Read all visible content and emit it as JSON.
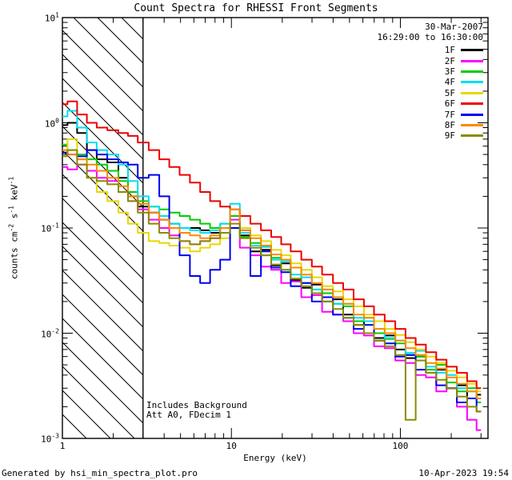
{
  "meta": {
    "date": "30-Mar-2007",
    "time_range": "16:29:00 to 16:30:00"
  },
  "annotations": {
    "line1": "Includes Background",
    "line2": "Att A0, FDecim 1"
  },
  "footer": {
    "left": "Generated by hsi_min_spectra_plot.pro",
    "right": "10-Apr-2023 19:54"
  },
  "chart_data": {
    "type": "line",
    "mode": "step-histogram",
    "title": "Count Spectra for RHESSI Front Segments",
    "xlabel": "Energy (keV)",
    "ylabel_segments": [
      {
        "t": "counts cm"
      },
      {
        "t": "-2",
        "sup": true
      },
      {
        "t": " s"
      },
      {
        "t": "-1",
        "sup": true
      },
      {
        "t": " keV"
      },
      {
        "t": "-1",
        "sup": true
      }
    ],
    "x_scale": "log",
    "y_scale": "log",
    "xlim": [
      1,
      330
    ],
    "ylim": [
      0.001,
      10
    ],
    "x_major_ticks": [
      1,
      10,
      100
    ],
    "y_major_exponents": [
      1,
      0,
      -1,
      -2,
      -3
    ],
    "grid": false,
    "legend_position": "top-right-inside",
    "shaded_region": {
      "from": 1,
      "to": 3,
      "style": "diagonal-hatch",
      "meaning": "excluded low-energy band"
    },
    "energies": [
      1.0,
      1.15,
      1.3,
      1.5,
      1.7,
      2.0,
      2.3,
      2.6,
      3.0,
      3.5,
      4.0,
      4.6,
      5.3,
      6.1,
      7.0,
      8.0,
      9.2,
      10.5,
      12,
      14,
      16,
      18.5,
      21,
      24,
      28,
      32,
      37,
      43,
      49,
      57,
      65,
      75,
      87,
      100,
      115,
      132,
      152,
      175,
      201,
      232,
      266,
      300
    ],
    "series": [
      {
        "name": "1F",
        "color": "#000000",
        "values": [
          0.95,
          1.0,
          0.8,
          0.55,
          0.45,
          0.42,
          0.3,
          0.2,
          0.16,
          0.14,
          0.12,
          0.11,
          0.1,
          0.1,
          0.095,
          0.09,
          0.1,
          0.13,
          0.085,
          0.06,
          0.062,
          0.044,
          0.046,
          0.032,
          0.027,
          0.029,
          0.02,
          0.021,
          0.015,
          0.012,
          0.013,
          0.009,
          0.0095,
          0.007,
          0.0058,
          0.006,
          0.0042,
          0.0045,
          0.003,
          0.0032,
          0.0024,
          0.0026
        ]
      },
      {
        "name": "2F",
        "color": "#ff00ff",
        "values": [
          0.38,
          0.36,
          0.4,
          0.35,
          0.3,
          0.28,
          0.22,
          0.18,
          0.15,
          0.12,
          0.1,
          0.085,
          0.075,
          0.07,
          0.075,
          0.08,
          0.09,
          0.12,
          0.065,
          0.055,
          0.043,
          0.04,
          0.03,
          0.031,
          0.022,
          0.023,
          0.016,
          0.015,
          0.013,
          0.01,
          0.0095,
          0.0075,
          0.0072,
          0.0055,
          0.0052,
          0.004,
          0.0038,
          0.0028,
          0.003,
          0.002,
          0.0015,
          0.0012
        ]
      },
      {
        "name": "3F",
        "color": "#00cc00",
        "values": [
          0.62,
          0.55,
          0.5,
          0.45,
          0.4,
          0.35,
          0.28,
          0.22,
          0.18,
          0.16,
          0.15,
          0.14,
          0.13,
          0.12,
          0.11,
          0.1,
          0.11,
          0.13,
          0.082,
          0.072,
          0.055,
          0.052,
          0.04,
          0.042,
          0.03,
          0.026,
          0.024,
          0.019,
          0.018,
          0.013,
          0.014,
          0.01,
          0.0088,
          0.008,
          0.0062,
          0.006,
          0.0045,
          0.005,
          0.0034,
          0.0028,
          0.003,
          0.0022
        ]
      },
      {
        "name": "4F",
        "color": "#00dff0",
        "values": [
          1.15,
          1.3,
          0.9,
          0.65,
          0.55,
          0.5,
          0.4,
          0.28,
          0.2,
          0.16,
          0.13,
          0.11,
          0.1,
          0.095,
          0.09,
          0.095,
          0.11,
          0.17,
          0.09,
          0.068,
          0.066,
          0.05,
          0.048,
          0.036,
          0.034,
          0.026,
          0.026,
          0.019,
          0.019,
          0.014,
          0.013,
          0.011,
          0.009,
          0.0085,
          0.0065,
          0.0068,
          0.0048,
          0.0042,
          0.004,
          0.003,
          0.0028,
          0.0024
        ]
      },
      {
        "name": "5F",
        "color": "#e8d800",
        "values": [
          0.55,
          0.7,
          0.45,
          0.3,
          0.22,
          0.18,
          0.14,
          0.11,
          0.09,
          0.075,
          0.072,
          0.068,
          0.065,
          0.06,
          0.065,
          0.07,
          0.08,
          0.1,
          0.1,
          0.085,
          0.075,
          0.062,
          0.055,
          0.046,
          0.04,
          0.034,
          0.028,
          0.025,
          0.021,
          0.018,
          0.015,
          0.013,
          0.011,
          0.0096,
          0.0082,
          0.007,
          0.006,
          0.0052,
          0.0044,
          0.0038,
          0.0033,
          0.0028
        ]
      },
      {
        "name": "6F",
        "color": "#ee0000",
        "values": [
          1.5,
          1.6,
          1.2,
          1.0,
          0.9,
          0.85,
          0.8,
          0.75,
          0.65,
          0.55,
          0.45,
          0.38,
          0.32,
          0.27,
          0.22,
          0.18,
          0.16,
          0.15,
          0.13,
          0.11,
          0.095,
          0.082,
          0.07,
          0.06,
          0.05,
          0.043,
          0.036,
          0.03,
          0.026,
          0.021,
          0.018,
          0.015,
          0.013,
          0.011,
          0.009,
          0.0078,
          0.0066,
          0.0056,
          0.0048,
          0.0042,
          0.0035,
          0.003
        ]
      },
      {
        "name": "7F",
        "color": "#0000ee",
        "values": [
          0.52,
          0.5,
          0.48,
          0.55,
          0.5,
          0.45,
          0.42,
          0.4,
          0.3,
          0.32,
          0.2,
          0.1,
          0.055,
          0.035,
          0.03,
          0.04,
          0.05,
          0.1,
          0.095,
          0.035,
          0.06,
          0.042,
          0.038,
          0.028,
          0.03,
          0.02,
          0.022,
          0.015,
          0.014,
          0.011,
          0.012,
          0.0085,
          0.008,
          0.006,
          0.0062,
          0.0045,
          0.0042,
          0.0032,
          0.003,
          0.0022,
          0.0024,
          0.0018
        ]
      },
      {
        "name": "8F",
        "color": "#ff8800",
        "values": [
          0.55,
          0.5,
          0.45,
          0.4,
          0.35,
          0.3,
          0.25,
          0.2,
          0.17,
          0.14,
          0.12,
          0.1,
          0.09,
          0.085,
          0.08,
          0.085,
          0.1,
          0.15,
          0.095,
          0.08,
          0.068,
          0.056,
          0.05,
          0.042,
          0.036,
          0.03,
          0.026,
          0.022,
          0.019,
          0.015,
          0.014,
          0.011,
          0.01,
          0.0085,
          0.0072,
          0.0062,
          0.0052,
          0.0046,
          0.0038,
          0.0033,
          0.0028,
          0.0024
        ]
      },
      {
        "name": "9F",
        "color": "#8b8b00",
        "values": [
          0.48,
          0.55,
          0.4,
          0.3,
          0.28,
          0.26,
          0.22,
          0.18,
          0.14,
          0.11,
          0.09,
          0.08,
          0.075,
          0.07,
          0.075,
          0.08,
          0.09,
          0.11,
          0.08,
          0.065,
          0.055,
          0.045,
          0.04,
          0.033,
          0.028,
          0.024,
          0.02,
          0.017,
          0.014,
          0.012,
          0.01,
          0.0085,
          0.0075,
          0.0062,
          0.0015,
          0.0055,
          0.0042,
          0.0036,
          0.003,
          0.0025,
          0.002,
          0.0018
        ]
      }
    ]
  }
}
